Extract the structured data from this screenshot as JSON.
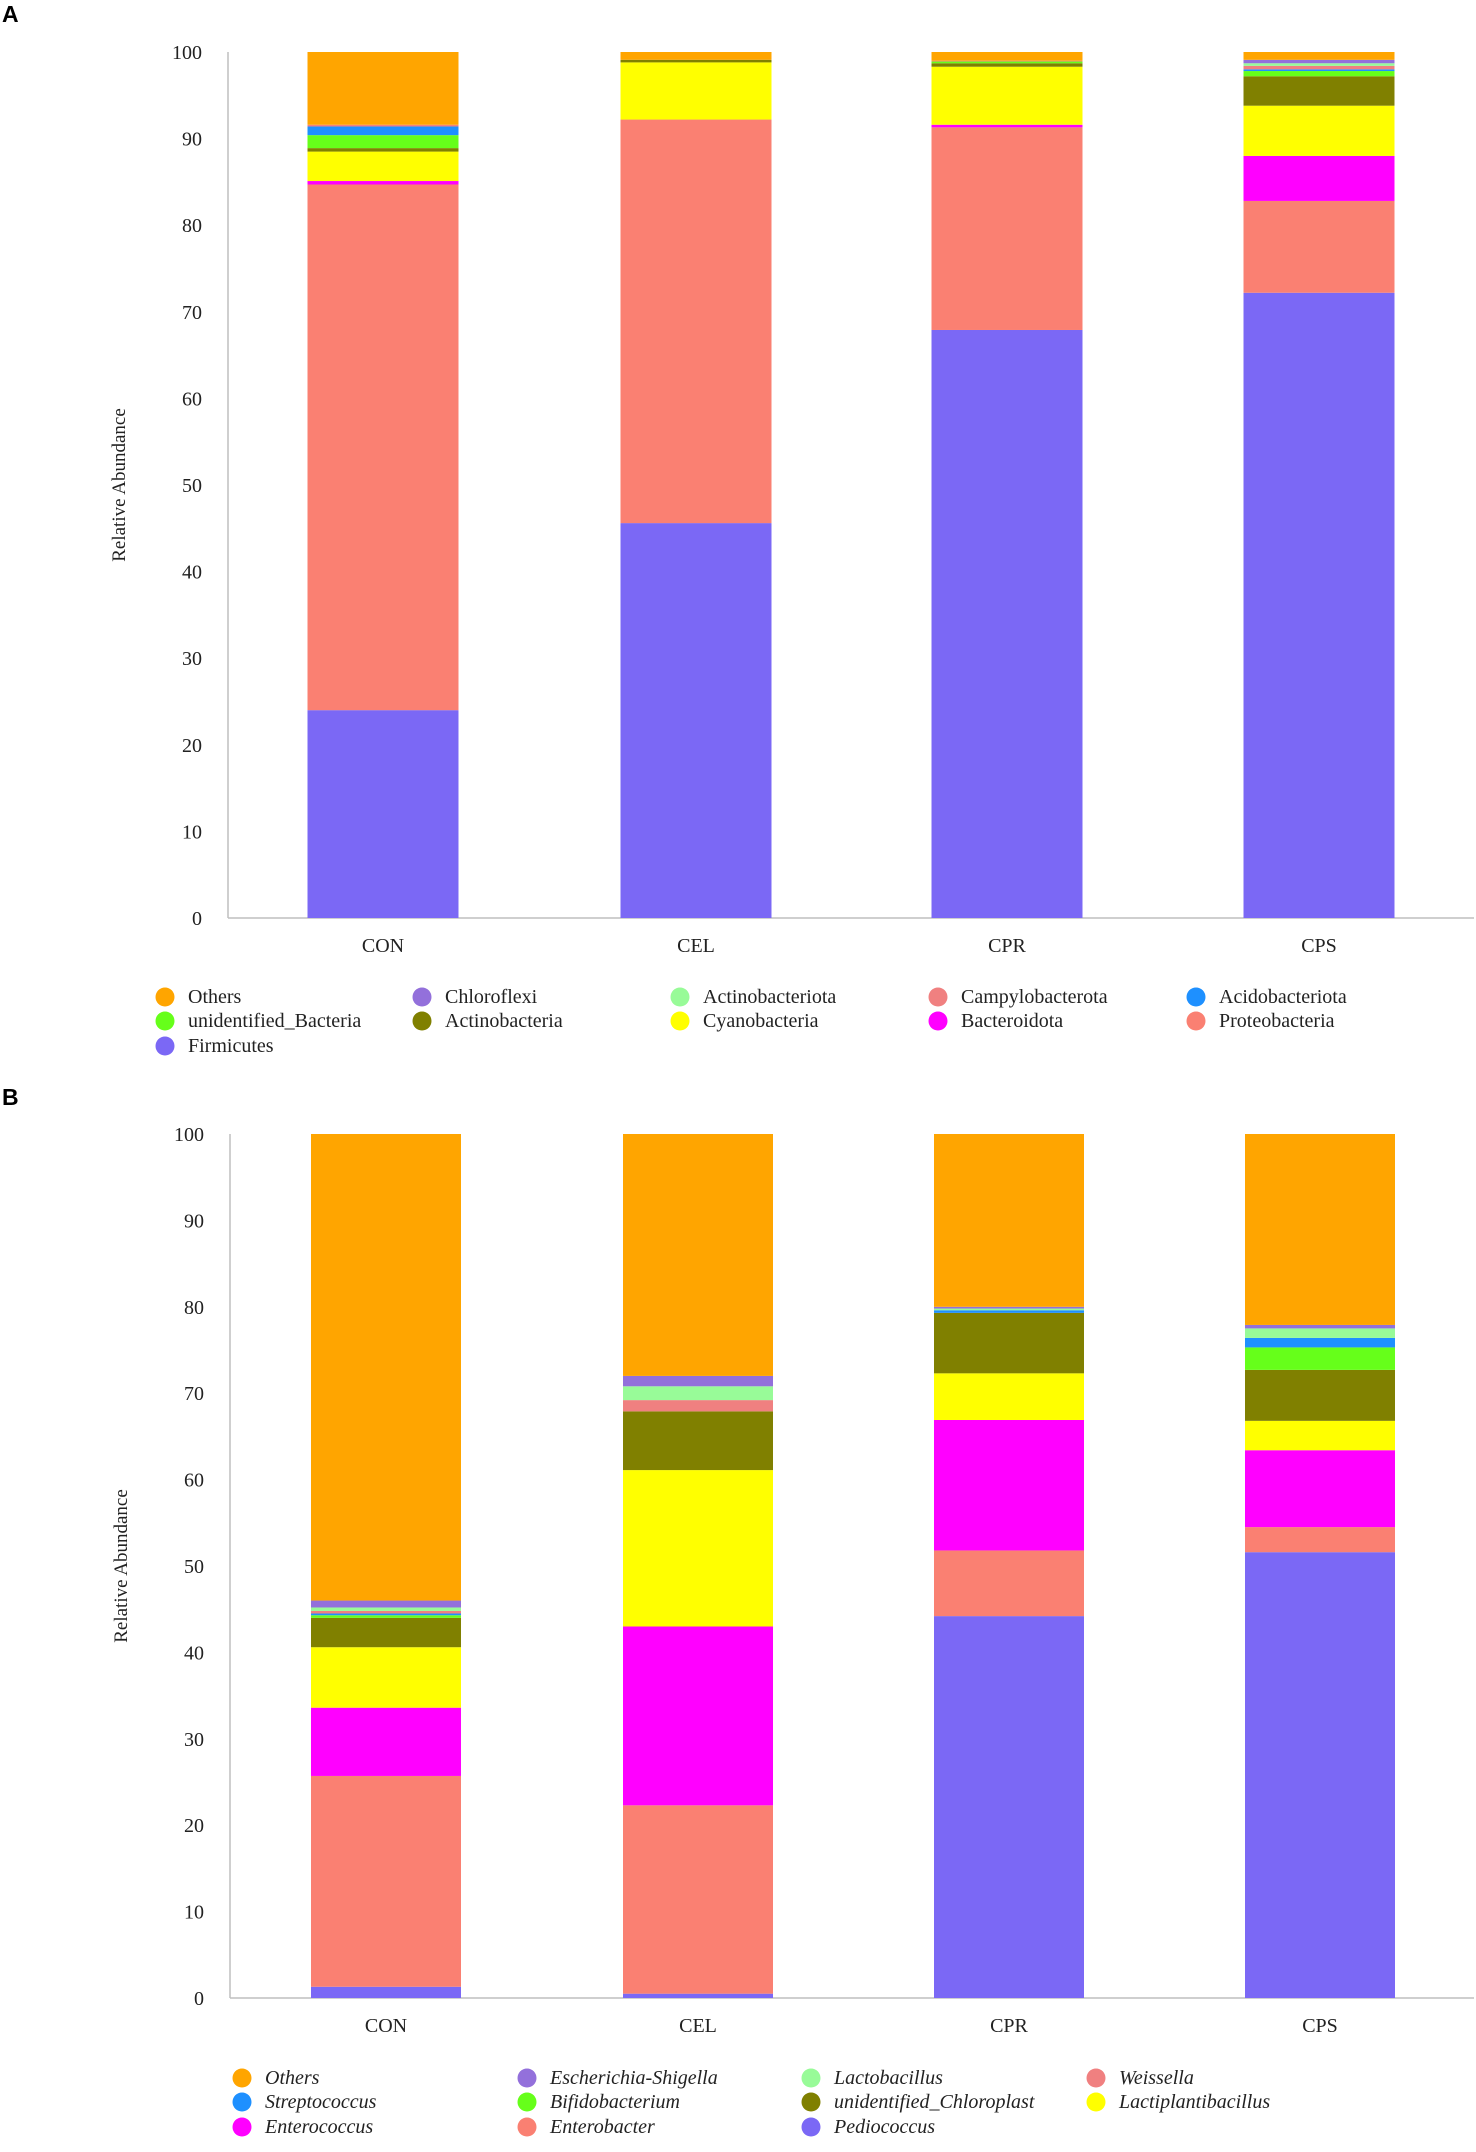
{
  "chart_data": [
    {
      "panel": "A",
      "type": "bar",
      "stacked": true,
      "ylabel": "Relative Abundance",
      "xlabel": "",
      "ylim": [
        0,
        100
      ],
      "yticks": [
        0,
        10,
        20,
        30,
        40,
        50,
        60,
        70,
        80,
        90,
        100
      ],
      "grid": false,
      "legend_position": "bottom",
      "legend_italic": false,
      "categories": [
        "CON",
        "CEL",
        "CPR",
        "CPS"
      ],
      "series": [
        {
          "name": "Firmicutes",
          "color": "#7b68f5",
          "values": [
            24.0,
            45.6,
            67.9,
            72.2
          ]
        },
        {
          "name": "Proteobacteria",
          "color": "#fa8072",
          "values": [
            60.7,
            46.6,
            23.4,
            10.6
          ]
        },
        {
          "name": "Bacteroidota",
          "color": "#ff00ff",
          "values": [
            0.4,
            0.0,
            0.3,
            5.2
          ]
        },
        {
          "name": "Cyanobacteria",
          "color": "#ffff00",
          "values": [
            3.4,
            6.6,
            6.7,
            5.8
          ]
        },
        {
          "name": "Actinobacteria",
          "color": "#808000",
          "values": [
            0.4,
            0.3,
            0.4,
            3.4
          ]
        },
        {
          "name": "unidentified_Bacteria",
          "color": "#66ff1a",
          "values": [
            1.5,
            0.0,
            0.2,
            0.6
          ]
        },
        {
          "name": "Acidobacteriota",
          "color": "#1e90ff",
          "values": [
            1.0,
            0.0,
            0.0,
            0.2
          ]
        },
        {
          "name": "Campylobacterota",
          "color": "#f08080",
          "values": [
            0.2,
            0.0,
            0.1,
            0.4
          ]
        },
        {
          "name": "Actinobacteriota",
          "color": "#98fb98",
          "values": [
            0.0,
            0.0,
            0.0,
            0.3
          ]
        },
        {
          "name": "Chloroflexi",
          "color": "#9370db",
          "values": [
            0.0,
            0.0,
            0.0,
            0.4
          ]
        },
        {
          "name": "Others",
          "color": "#ffa500",
          "values": [
            8.4,
            0.9,
            1.0,
            0.9
          ]
        }
      ],
      "legend_order": [
        "Others",
        "Chloroflexi",
        "Actinobacteriota",
        "Campylobacterota",
        "Acidobacteriota",
        "unidentified_Bacteria",
        "Actinobacteria",
        "Cyanobacteria",
        "Bacteroidota",
        "Proteobacteria",
        "Firmicutes"
      ]
    },
    {
      "panel": "B",
      "type": "bar",
      "stacked": true,
      "ylabel": "Relative Abundance",
      "xlabel": "",
      "ylim": [
        0,
        100
      ],
      "yticks": [
        0,
        10,
        20,
        30,
        40,
        50,
        60,
        70,
        80,
        90,
        100
      ],
      "grid": false,
      "legend_position": "bottom",
      "legend_italic": true,
      "categories": [
        "CON",
        "CEL",
        "CPR",
        "CPS"
      ],
      "series": [
        {
          "name": "Pediococcus",
          "color": "#7b68f5",
          "values": [
            1.3,
            0.5,
            44.2,
            51.6
          ]
        },
        {
          "name": "Enterobacter",
          "color": "#fa8072",
          "values": [
            24.4,
            21.8,
            7.6,
            2.9
          ]
        },
        {
          "name": "Enterococcus",
          "color": "#ff00ff",
          "values": [
            7.9,
            20.7,
            15.1,
            8.9
          ]
        },
        {
          "name": "Lactiplantibacillus",
          "color": "#ffff00",
          "values": [
            7.0,
            18.1,
            5.4,
            3.4
          ]
        },
        {
          "name": "unidentified_Chloroplast",
          "color": "#808000",
          "values": [
            3.4,
            6.8,
            7.0,
            5.9
          ]
        },
        {
          "name": "Bifidobacterium",
          "color": "#66ff1a",
          "values": [
            0.3,
            0.0,
            0.0,
            2.6
          ]
        },
        {
          "name": "Streptococcus",
          "color": "#1e90ff",
          "values": [
            0.2,
            0.0,
            0.3,
            1.1
          ]
        },
        {
          "name": "Weissella",
          "color": "#f08080",
          "values": [
            0.3,
            1.3,
            0.0,
            0.0
          ]
        },
        {
          "name": "Lactobacillus",
          "color": "#98fb98",
          "values": [
            0.4,
            1.6,
            0.2,
            1.1
          ]
        },
        {
          "name": "Escherichia-Shigella",
          "color": "#9370db",
          "values": [
            0.8,
            1.2,
            0.2,
            0.4
          ]
        },
        {
          "name": "Others",
          "color": "#ffa500",
          "values": [
            54.0,
            28.0,
            20.0,
            22.1
          ]
        }
      ],
      "legend_order": [
        "Others",
        "Escherichia-Shigella",
        "Lactobacillus",
        "Weissella",
        "Streptococcus",
        "Bifidobacterium",
        "unidentified_Chloroplast",
        "Lactiplantibacillus",
        "Enterococcus",
        "Enterobacter",
        "Pediococcus"
      ]
    }
  ]
}
